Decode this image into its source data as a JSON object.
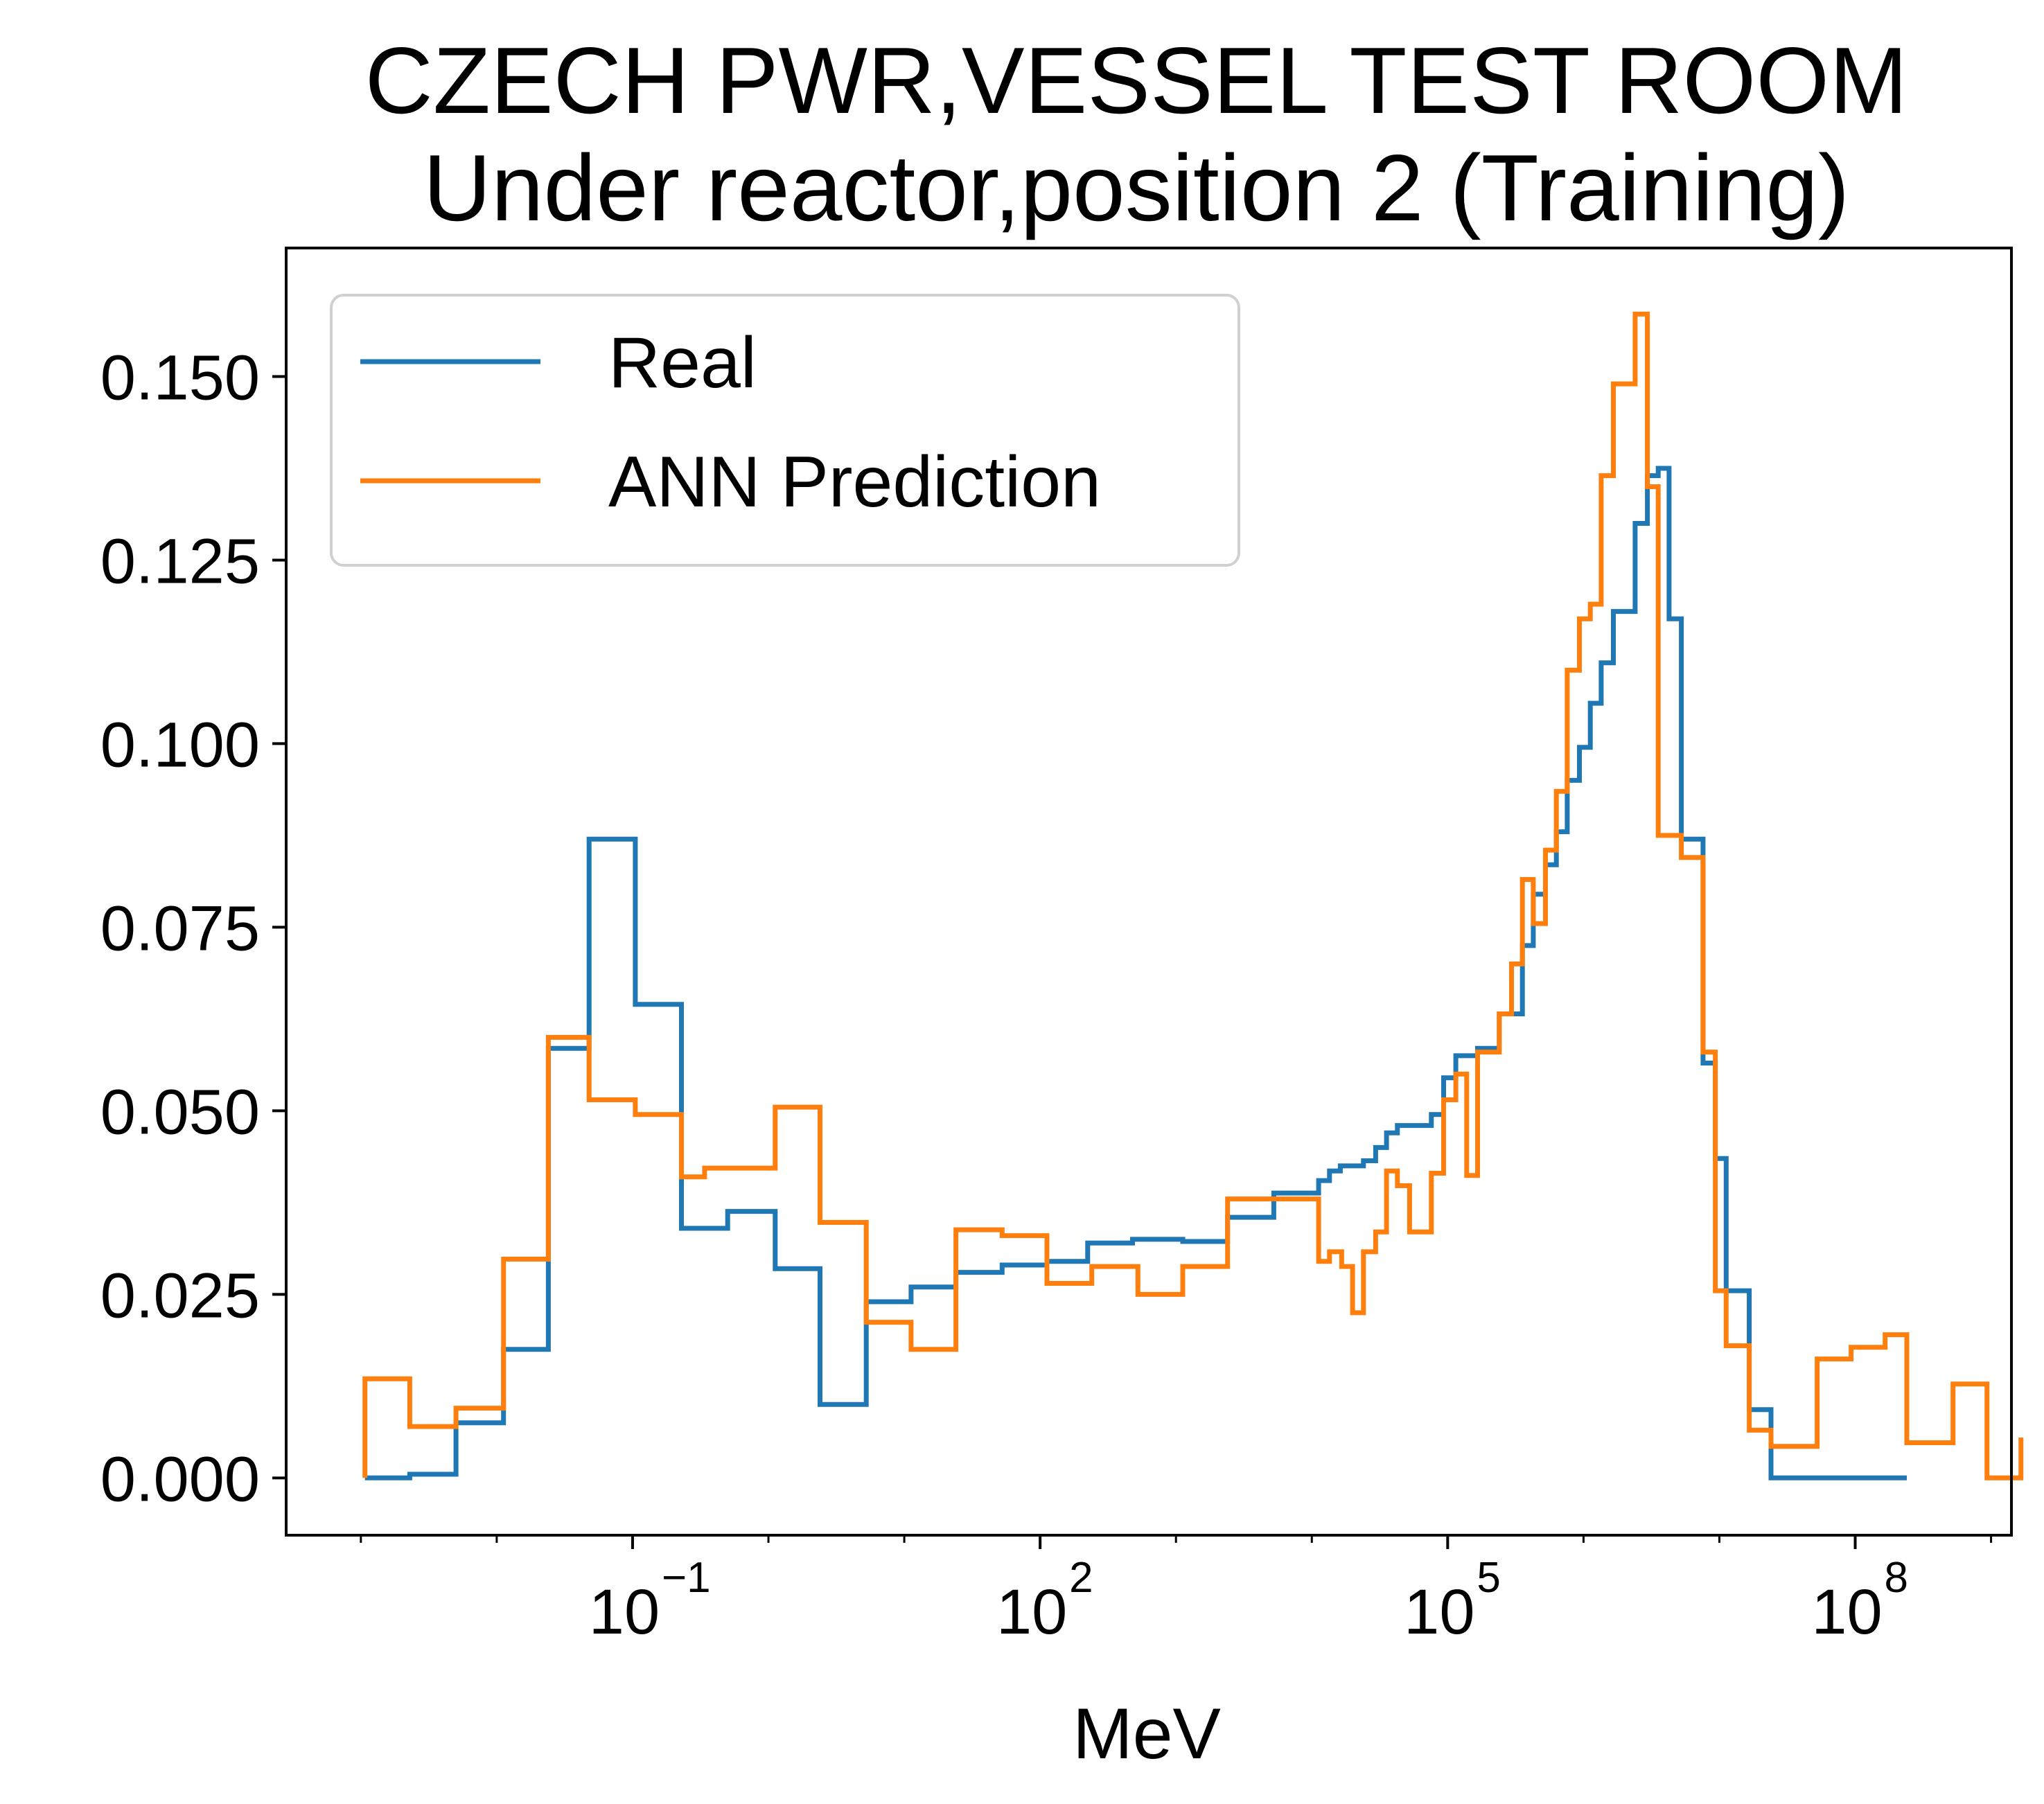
{
  "chart_data": {
    "type": "line",
    "step": true,
    "title_line1": "CZECH PWR,VESSEL TEST ROOM",
    "title_line2": "Under reactor,position 2 (Training)",
    "xlabel": "MeV",
    "ylabel": "",
    "xscale": "log",
    "xlim_log10": [
      -3.55,
      9.15
    ],
    "ylim": [
      -0.0078,
      0.1675
    ],
    "yticks": [
      0.0,
      0.025,
      0.05,
      0.075,
      0.1,
      0.125,
      0.15
    ],
    "ytick_labels": [
      "0.000",
      "0.025",
      "0.050",
      "0.075",
      "0.100",
      "0.125",
      "0.150"
    ],
    "xticks_log10": [
      -1,
      2,
      5,
      8
    ],
    "xtick_labels": [
      {
        "base": "10",
        "exp": "−1"
      },
      {
        "base": "10",
        "exp": "2"
      },
      {
        "base": "10",
        "exp": "5"
      },
      {
        "base": "10",
        "exp": "8"
      }
    ],
    "legend": {
      "location": "upper left",
      "entries": [
        "Real",
        "ANN Prediction"
      ]
    },
    "colors": {
      "Real": "#1f77b4",
      "ANN Prediction": "#ff7f0e"
    },
    "series": [
      {
        "name": "Real",
        "color": "#1f77b4",
        "points_log10": [
          [
            -2.97,
            0.0
          ],
          [
            -2.64,
            0.0
          ],
          [
            -2.64,
            0.0005
          ],
          [
            -2.3,
            0.0005
          ],
          [
            -2.3,
            0.0075
          ],
          [
            -1.95,
            0.0075
          ],
          [
            -1.95,
            0.0175
          ],
          [
            -1.62,
            0.0175
          ],
          [
            -1.62,
            0.0585
          ],
          [
            -1.32,
            0.0585
          ],
          [
            -1.32,
            0.087
          ],
          [
            -0.98,
            0.087
          ],
          [
            -0.98,
            0.0645
          ],
          [
            -0.64,
            0.0645
          ],
          [
            -0.64,
            0.034
          ],
          [
            -0.3,
            0.034
          ],
          [
            -0.3,
            0.0363
          ],
          [
            0.05,
            0.0363
          ],
          [
            0.05,
            0.0285
          ],
          [
            0.38,
            0.0285
          ],
          [
            0.38,
            0.01
          ],
          [
            0.72,
            0.01
          ],
          [
            0.72,
            0.024
          ],
          [
            1.05,
            0.024
          ],
          [
            1.05,
            0.026
          ],
          [
            1.38,
            0.026
          ],
          [
            1.38,
            0.028
          ],
          [
            1.72,
            0.028
          ],
          [
            1.72,
            0.029
          ],
          [
            2.05,
            0.029
          ],
          [
            2.05,
            0.0295
          ],
          [
            2.35,
            0.0295
          ],
          [
            2.35,
            0.032
          ],
          [
            2.68,
            0.032
          ],
          [
            2.68,
            0.0325
          ],
          [
            3.05,
            0.0325
          ],
          [
            3.05,
            0.0322
          ],
          [
            3.38,
            0.0322
          ],
          [
            3.38,
            0.0355
          ],
          [
            3.72,
            0.0355
          ],
          [
            3.72,
            0.0388
          ],
          [
            4.05,
            0.0388
          ],
          [
            4.05,
            0.0405
          ],
          [
            4.13,
            0.0405
          ],
          [
            4.13,
            0.0418
          ],
          [
            4.21,
            0.0418
          ],
          [
            4.21,
            0.0425
          ],
          [
            4.38,
            0.0425
          ],
          [
            4.38,
            0.0432
          ],
          [
            4.47,
            0.0432
          ],
          [
            4.47,
            0.045
          ],
          [
            4.55,
            0.045
          ],
          [
            4.55,
            0.047
          ],
          [
            4.63,
            0.047
          ],
          [
            4.63,
            0.048
          ],
          [
            4.88,
            0.048
          ],
          [
            4.88,
            0.0495
          ],
          [
            4.97,
            0.0495
          ],
          [
            4.97,
            0.0545
          ],
          [
            5.06,
            0.0545
          ],
          [
            5.06,
            0.0575
          ],
          [
            5.22,
            0.0575
          ],
          [
            5.22,
            0.0585
          ],
          [
            5.38,
            0.0585
          ],
          [
            5.38,
            0.0632
          ],
          [
            5.55,
            0.0632
          ],
          [
            5.55,
            0.0725
          ],
          [
            5.63,
            0.0725
          ],
          [
            5.63,
            0.0795
          ],
          [
            5.72,
            0.0795
          ],
          [
            5.72,
            0.0835
          ],
          [
            5.8,
            0.0835
          ],
          [
            5.8,
            0.088
          ],
          [
            5.88,
            0.088
          ],
          [
            5.88,
            0.095
          ],
          [
            5.97,
            0.095
          ],
          [
            5.97,
            0.0995
          ],
          [
            6.05,
            0.0995
          ],
          [
            6.05,
            0.1055
          ],
          [
            6.13,
            0.1055
          ],
          [
            6.13,
            0.111
          ],
          [
            6.22,
            0.111
          ],
          [
            6.22,
            0.118
          ],
          [
            6.38,
            0.118
          ],
          [
            6.38,
            0.13
          ],
          [
            6.47,
            0.13
          ],
          [
            6.47,
            0.1365
          ],
          [
            6.55,
            0.1365
          ],
          [
            6.55,
            0.1375
          ],
          [
            6.63,
            0.1375
          ],
          [
            6.63,
            0.117
          ],
          [
            6.72,
            0.117
          ],
          [
            6.72,
            0.087
          ],
          [
            6.88,
            0.087
          ],
          [
            6.88,
            0.0565
          ],
          [
            6.97,
            0.0565
          ],
          [
            6.97,
            0.0435
          ],
          [
            7.05,
            0.0435
          ],
          [
            7.05,
            0.0255
          ],
          [
            7.22,
            0.0255
          ],
          [
            7.22,
            0.0093
          ],
          [
            7.38,
            0.0093
          ],
          [
            7.38,
            0.0
          ],
          [
            8.38,
            0.0
          ]
        ]
      },
      {
        "name": "ANN Prediction",
        "color": "#ff7f0e",
        "points_log10": [
          [
            -2.97,
            0.0
          ],
          [
            -2.97,
            0.0135
          ],
          [
            -2.64,
            0.0135
          ],
          [
            -2.64,
            0.007
          ],
          [
            -2.3,
            0.007
          ],
          [
            -2.3,
            0.0095
          ],
          [
            -1.95,
            0.0095
          ],
          [
            -1.95,
            0.0298
          ],
          [
            -1.62,
            0.0298
          ],
          [
            -1.62,
            0.06
          ],
          [
            -1.32,
            0.06
          ],
          [
            -1.32,
            0.0515
          ],
          [
            -0.98,
            0.0515
          ],
          [
            -0.98,
            0.0495
          ],
          [
            -0.64,
            0.0495
          ],
          [
            -0.64,
            0.041
          ],
          [
            -0.47,
            0.041
          ],
          [
            -0.47,
            0.0422
          ],
          [
            -0.3,
            0.0422
          ],
          [
            -0.3,
            0.0422
          ],
          [
            0.05,
            0.0422
          ],
          [
            0.05,
            0.0505
          ],
          [
            0.38,
            0.0505
          ],
          [
            0.38,
            0.0348
          ],
          [
            0.72,
            0.0348
          ],
          [
            0.72,
            0.0212
          ],
          [
            1.05,
            0.0212
          ],
          [
            1.05,
            0.0175
          ],
          [
            1.38,
            0.0175
          ],
          [
            1.38,
            0.0338
          ],
          [
            1.72,
            0.0338
          ],
          [
            1.72,
            0.033
          ],
          [
            2.05,
            0.033
          ],
          [
            2.05,
            0.0265
          ],
          [
            2.38,
            0.0265
          ],
          [
            2.38,
            0.0288
          ],
          [
            2.72,
            0.0288
          ],
          [
            2.72,
            0.025
          ],
          [
            3.05,
            0.025
          ],
          [
            3.05,
            0.0288
          ],
          [
            3.38,
            0.0288
          ],
          [
            3.38,
            0.038
          ],
          [
            3.72,
            0.038
          ],
          [
            3.72,
            0.038
          ],
          [
            4.05,
            0.038
          ],
          [
            4.05,
            0.0295
          ],
          [
            4.13,
            0.0295
          ],
          [
            4.13,
            0.0308
          ],
          [
            4.22,
            0.0308
          ],
          [
            4.22,
            0.0288
          ],
          [
            4.3,
            0.0288
          ],
          [
            4.3,
            0.0225
          ],
          [
            4.38,
            0.0225
          ],
          [
            4.38,
            0.0308
          ],
          [
            4.47,
            0.0308
          ],
          [
            4.47,
            0.0335
          ],
          [
            4.55,
            0.0335
          ],
          [
            4.55,
            0.0418
          ],
          [
            4.63,
            0.0418
          ],
          [
            4.63,
            0.0398
          ],
          [
            4.72,
            0.0398
          ],
          [
            4.72,
            0.0335
          ],
          [
            4.88,
            0.0335
          ],
          [
            4.88,
            0.0415
          ],
          [
            4.97,
            0.0415
          ],
          [
            4.97,
            0.0515
          ],
          [
            5.06,
            0.0515
          ],
          [
            5.06,
            0.055
          ],
          [
            5.14,
            0.055
          ],
          [
            5.14,
            0.0412
          ],
          [
            5.22,
            0.0412
          ],
          [
            5.22,
            0.058
          ],
          [
            5.38,
            0.058
          ],
          [
            5.38,
            0.0632
          ],
          [
            5.47,
            0.0632
          ],
          [
            5.47,
            0.07
          ],
          [
            5.55,
            0.07
          ],
          [
            5.55,
            0.0815
          ],
          [
            5.63,
            0.0815
          ],
          [
            5.63,
            0.0755
          ],
          [
            5.72,
            0.0755
          ],
          [
            5.72,
            0.0855
          ],
          [
            5.8,
            0.0855
          ],
          [
            5.8,
            0.0935
          ],
          [
            5.88,
            0.0935
          ],
          [
            5.88,
            0.11
          ],
          [
            5.97,
            0.11
          ],
          [
            5.97,
            0.117
          ],
          [
            6.05,
            0.117
          ],
          [
            6.05,
            0.119
          ],
          [
            6.13,
            0.119
          ],
          [
            6.13,
            0.1365
          ],
          [
            6.22,
            0.1365
          ],
          [
            6.22,
            0.149
          ],
          [
            6.38,
            0.149
          ],
          [
            6.38,
            0.1585
          ],
          [
            6.47,
            0.1585
          ],
          [
            6.47,
            0.135
          ],
          [
            6.55,
            0.135
          ],
          [
            6.55,
            0.0875
          ],
          [
            6.72,
            0.0875
          ],
          [
            6.72,
            0.0845
          ],
          [
            6.88,
            0.0845
          ],
          [
            6.88,
            0.058
          ],
          [
            6.97,
            0.058
          ],
          [
            6.97,
            0.0255
          ],
          [
            7.05,
            0.0255
          ],
          [
            7.05,
            0.018
          ],
          [
            7.22,
            0.018
          ],
          [
            7.22,
            0.0065
          ],
          [
            7.38,
            0.0065
          ],
          [
            7.38,
            0.0043
          ],
          [
            7.72,
            0.0043
          ],
          [
            7.72,
            0.0162
          ],
          [
            7.97,
            0.0162
          ],
          [
            7.97,
            0.0178
          ],
          [
            8.22,
            0.0178
          ],
          [
            8.22,
            0.0195
          ],
          [
            8.38,
            0.0195
          ],
          [
            8.38,
            0.0048
          ],
          [
            8.72,
            0.0048
          ],
          [
            8.72,
            0.0128
          ],
          [
            8.97,
            0.0128
          ],
          [
            8.97,
            0.0
          ],
          [
            9.22,
            0.0
          ],
          [
            9.22,
            0.0055
          ]
        ]
      }
    ]
  }
}
